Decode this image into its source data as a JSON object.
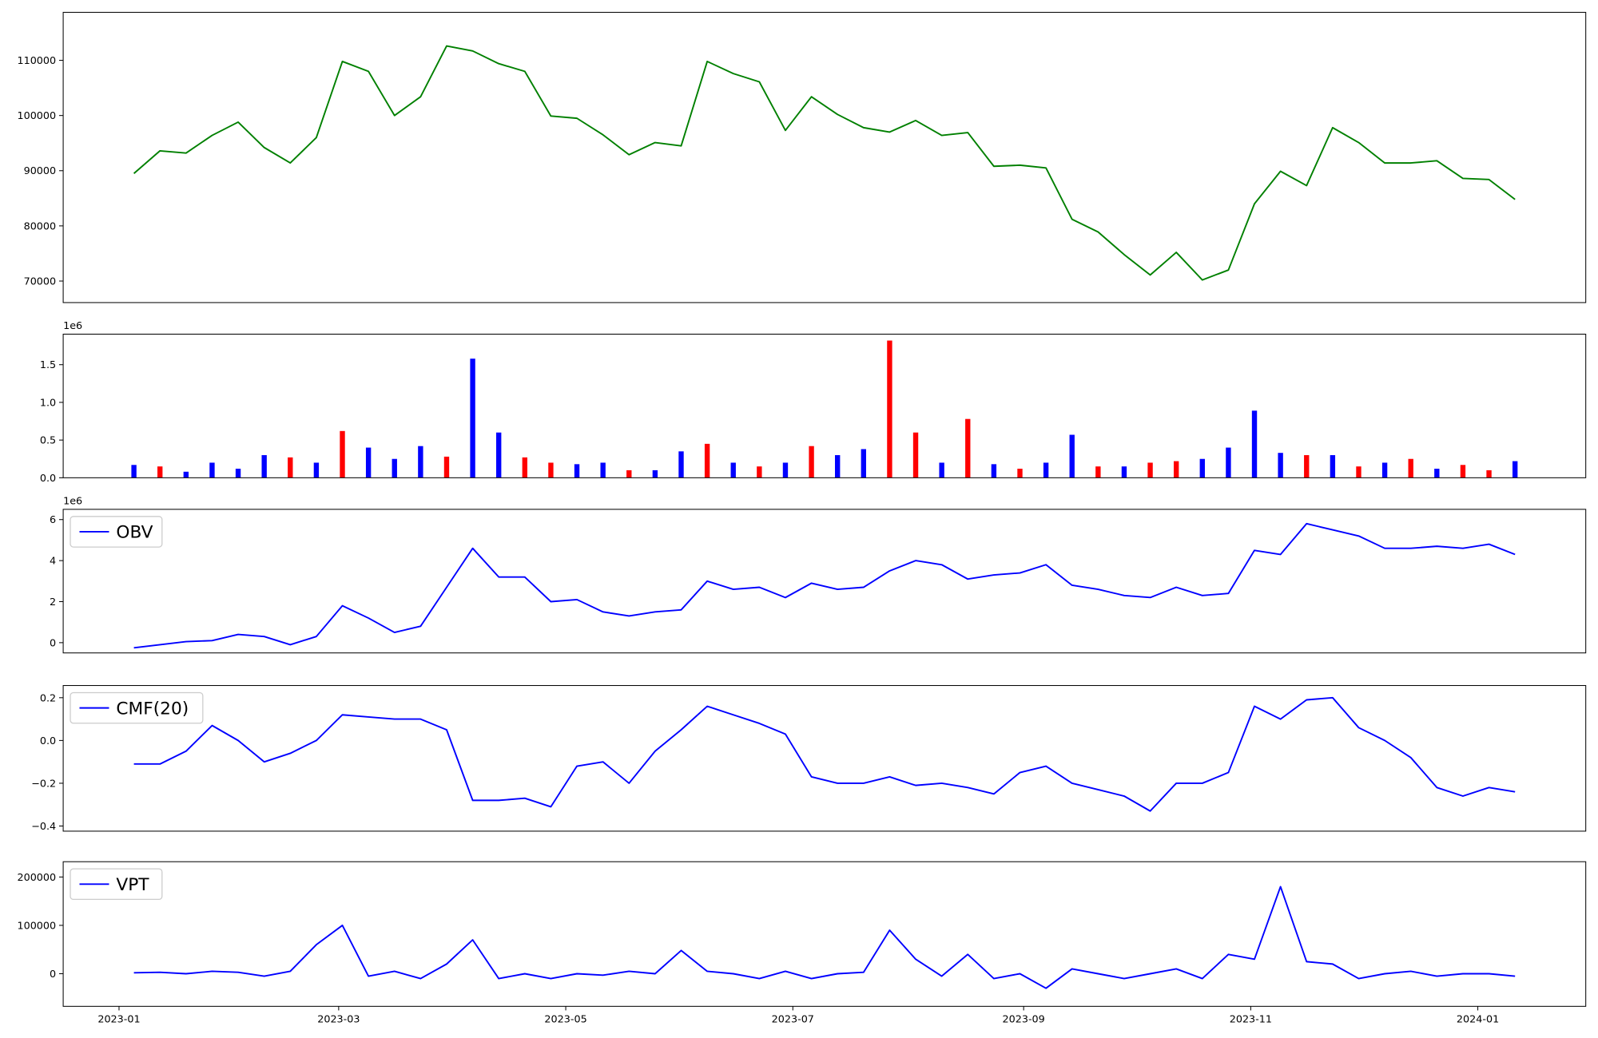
{
  "chart_data": [
    {
      "type": "line",
      "color": "#008000",
      "x": [
        "2023-01-05",
        "2023-01-12",
        "2023-01-19",
        "2023-01-26",
        "2023-02-02",
        "2023-02-09",
        "2023-02-16",
        "2023-02-23",
        "2023-03-02",
        "2023-03-09",
        "2023-03-16",
        "2023-03-23",
        "2023-03-30",
        "2023-04-06",
        "2023-04-13",
        "2023-04-20",
        "2023-04-27",
        "2023-05-04",
        "2023-05-11",
        "2023-05-18",
        "2023-05-25",
        "2023-06-01",
        "2023-06-08",
        "2023-06-15",
        "2023-06-22",
        "2023-06-29",
        "2023-07-06",
        "2023-07-13",
        "2023-07-20",
        "2023-07-27",
        "2023-08-03",
        "2023-08-10",
        "2023-08-17",
        "2023-08-24",
        "2023-08-31",
        "2023-09-07",
        "2023-09-14",
        "2023-09-21",
        "2023-09-28",
        "2023-10-05",
        "2023-10-12",
        "2023-10-19",
        "2023-10-26",
        "2023-11-02",
        "2023-11-09",
        "2023-11-16",
        "2023-11-23",
        "2023-11-30",
        "2023-12-07",
        "2023-12-14",
        "2023-12-21",
        "2023-12-28",
        "2024-01-04",
        "2024-01-11"
      ],
      "values": [
        89500,
        93600,
        93200,
        96400,
        98800,
        94200,
        91400,
        96000,
        109800,
        108000,
        100000,
        103400,
        112600,
        111700,
        109400,
        108000,
        99900,
        99500,
        96500,
        92900,
        95100,
        94500,
        109800,
        107600,
        106100,
        97300,
        103400,
        100200,
        97800,
        97000,
        99100,
        96400,
        96900,
        90800,
        91000,
        90500,
        81200,
        78900,
        74800,
        71100,
        75200,
        70200,
        72000,
        84000,
        89900,
        87300,
        97800,
        95100,
        91400,
        91400,
        91800,
        88600,
        88400,
        84800
      ],
      "xlim": [
        "2022-12-17",
        "2024-01-30"
      ],
      "ylim": [
        66100,
        118700
      ],
      "yticks": [
        70000,
        80000,
        90000,
        100000,
        110000
      ]
    },
    {
      "type": "bar",
      "y_offset_label": "1e6",
      "x": [
        "2023-01-05",
        "2023-01-12",
        "2023-01-19",
        "2023-01-26",
        "2023-02-02",
        "2023-02-09",
        "2023-02-16",
        "2023-02-23",
        "2023-03-02",
        "2023-03-09",
        "2023-03-16",
        "2023-03-23",
        "2023-03-30",
        "2023-04-06",
        "2023-04-13",
        "2023-04-20",
        "2023-04-27",
        "2023-05-04",
        "2023-05-11",
        "2023-05-18",
        "2023-05-25",
        "2023-06-01",
        "2023-06-08",
        "2023-06-15",
        "2023-06-22",
        "2023-06-29",
        "2023-07-06",
        "2023-07-13",
        "2023-07-20",
        "2023-07-27",
        "2023-08-03",
        "2023-08-10",
        "2023-08-17",
        "2023-08-24",
        "2023-08-31",
        "2023-09-07",
        "2023-09-14",
        "2023-09-21",
        "2023-09-28",
        "2023-10-05",
        "2023-10-12",
        "2023-10-19",
        "2023-10-26",
        "2023-11-02",
        "2023-11-09",
        "2023-11-16",
        "2023-11-23",
        "2023-11-30",
        "2023-12-07",
        "2023-12-14",
        "2023-12-21",
        "2023-12-28",
        "2024-01-04",
        "2024-01-11"
      ],
      "values": [
        0.17,
        0.15,
        0.08,
        0.2,
        0.12,
        0.3,
        0.27,
        0.2,
        0.62,
        0.4,
        0.25,
        0.42,
        0.28,
        1.58,
        0.6,
        0.27,
        0.2,
        0.18,
        0.2,
        0.1,
        0.1,
        0.35,
        0.45,
        0.2,
        0.15,
        0.2,
        0.42,
        0.3,
        0.38,
        1.82,
        0.6,
        0.2,
        0.78,
        0.18,
        0.12,
        0.2,
        0.57,
        0.15,
        0.15,
        0.2,
        0.22,
        0.25,
        0.4,
        0.89,
        0.33,
        0.3,
        0.3,
        0.15,
        0.2,
        0.25,
        0.12,
        0.17,
        0.1,
        0.22
      ],
      "bar_colors": [
        "#0000ff",
        "#ff0000",
        "#0000ff",
        "#0000ff",
        "#0000ff",
        "#0000ff",
        "#ff0000",
        "#0000ff",
        "#ff0000",
        "#0000ff",
        "#0000ff",
        "#0000ff",
        "#ff0000",
        "#0000ff",
        "#0000ff",
        "#ff0000",
        "#ff0000",
        "#0000ff",
        "#0000ff",
        "#ff0000",
        "#0000ff",
        "#0000ff",
        "#ff0000",
        "#0000ff",
        "#ff0000",
        "#0000ff",
        "#ff0000",
        "#0000ff",
        "#0000ff",
        "#ff0000",
        "#ff0000",
        "#0000ff",
        "#ff0000",
        "#0000ff",
        "#ff0000",
        "#0000ff",
        "#0000ff",
        "#ff0000",
        "#0000ff",
        "#ff0000",
        "#ff0000",
        "#0000ff",
        "#0000ff",
        "#0000ff",
        "#0000ff",
        "#ff0000",
        "#0000ff",
        "#ff0000",
        "#0000ff",
        "#ff0000",
        "#0000ff",
        "#ff0000",
        "#ff0000",
        "#0000ff"
      ],
      "xlim": [
        "2022-12-17",
        "2024-01-30"
      ],
      "ylim": [
        0,
        1.905
      ],
      "yticks": [
        {
          "value": 0,
          "label": "0.0"
        },
        0.5,
        {
          "value": 1,
          "label": "1.0"
        },
        1.5
      ]
    },
    {
      "type": "line",
      "y_offset_label": "1e6",
      "legend": "upper left",
      "x": [
        "2023-01-05",
        "2023-01-12",
        "2023-01-19",
        "2023-01-26",
        "2023-02-02",
        "2023-02-09",
        "2023-02-16",
        "2023-02-23",
        "2023-03-02",
        "2023-03-09",
        "2023-03-16",
        "2023-03-23",
        "2023-03-30",
        "2023-04-06",
        "2023-04-13",
        "2023-04-20",
        "2023-04-27",
        "2023-05-04",
        "2023-05-11",
        "2023-05-18",
        "2023-05-25",
        "2023-06-01",
        "2023-06-08",
        "2023-06-15",
        "2023-06-22",
        "2023-06-29",
        "2023-07-06",
        "2023-07-13",
        "2023-07-20",
        "2023-07-27",
        "2023-08-03",
        "2023-08-10",
        "2023-08-17",
        "2023-08-24",
        "2023-08-31",
        "2023-09-07",
        "2023-09-14",
        "2023-09-21",
        "2023-09-28",
        "2023-10-05",
        "2023-10-12",
        "2023-10-19",
        "2023-10-26",
        "2023-11-02",
        "2023-11-09",
        "2023-11-16",
        "2023-11-23",
        "2023-11-30",
        "2023-12-07",
        "2023-12-14",
        "2023-12-21",
        "2023-12-28",
        "2024-01-04",
        "2024-01-11"
      ],
      "series": [
        {
          "name": "OBV",
          "color": "#0000ff",
          "values": [
            -0.25,
            -0.1,
            0.05,
            0.1,
            0.4,
            0.3,
            -0.1,
            0.3,
            1.8,
            1.2,
            0.5,
            0.8,
            2.7,
            4.6,
            3.2,
            3.2,
            2.0,
            2.1,
            1.5,
            1.3,
            1.5,
            1.6,
            3.0,
            2.6,
            2.7,
            2.2,
            2.9,
            2.6,
            2.7,
            3.5,
            4.0,
            3.8,
            3.1,
            3.3,
            3.4,
            3.8,
            2.8,
            2.6,
            2.3,
            2.2,
            2.7,
            2.3,
            2.4,
            4.5,
            4.3,
            5.8,
            5.5,
            5.2,
            4.6,
            4.6,
            4.7,
            4.6,
            4.8,
            4.3
          ]
        }
      ],
      "xlim": [
        "2022-12-17",
        "2024-01-30"
      ],
      "ylim": [
        -0.5,
        6.5
      ],
      "yticks": [
        0,
        2,
        4,
        6
      ]
    },
    {
      "type": "line",
      "legend": "upper left",
      "x": [
        "2023-01-05",
        "2023-01-12",
        "2023-01-19",
        "2023-01-26",
        "2023-02-02",
        "2023-02-09",
        "2023-02-16",
        "2023-02-23",
        "2023-03-02",
        "2023-03-09",
        "2023-03-16",
        "2023-03-23",
        "2023-03-30",
        "2023-04-06",
        "2023-04-13",
        "2023-04-20",
        "2023-04-27",
        "2023-05-04",
        "2023-05-11",
        "2023-05-18",
        "2023-05-25",
        "2023-06-01",
        "2023-06-08",
        "2023-06-15",
        "2023-06-22",
        "2023-06-29",
        "2023-07-06",
        "2023-07-13",
        "2023-07-20",
        "2023-07-27",
        "2023-08-03",
        "2023-08-10",
        "2023-08-17",
        "2023-08-24",
        "2023-08-31",
        "2023-09-07",
        "2023-09-14",
        "2023-09-21",
        "2023-09-28",
        "2023-10-05",
        "2023-10-12",
        "2023-10-19",
        "2023-10-26",
        "2023-11-02",
        "2023-11-09",
        "2023-11-16",
        "2023-11-23",
        "2023-11-30",
        "2023-12-07",
        "2023-12-14",
        "2023-12-21",
        "2023-12-28",
        "2024-01-04",
        "2024-01-11"
      ],
      "series": [
        {
          "name": "CMF(20)",
          "color": "#0000ff",
          "values": [
            -0.11,
            -0.11,
            -0.05,
            0.07,
            0.0,
            -0.1,
            -0.06,
            0.0,
            0.12,
            0.11,
            0.1,
            0.1,
            0.05,
            -0.28,
            -0.28,
            -0.27,
            -0.31,
            -0.12,
            -0.1,
            -0.2,
            -0.05,
            0.05,
            0.16,
            0.12,
            0.08,
            0.03,
            -0.17,
            -0.2,
            -0.2,
            -0.17,
            -0.21,
            -0.2,
            -0.22,
            -0.25,
            -0.15,
            -0.12,
            -0.2,
            -0.23,
            -0.26,
            -0.33,
            -0.2,
            -0.2,
            -0.15,
            0.16,
            0.1,
            0.19,
            0.2,
            0.06,
            0.0,
            -0.08,
            -0.22,
            -0.26,
            -0.22,
            -0.24
          ]
        }
      ],
      "xlim": [
        "2022-12-17",
        "2024-01-30"
      ],
      "ylim": [
        -0.424,
        0.257
      ],
      "yticks": [
        {
          "value": -0.4,
          "label": "−0.4"
        },
        {
          "value": -0.2,
          "label": "−0.2"
        },
        {
          "value": 0,
          "label": "0.0"
        },
        0.2
      ]
    },
    {
      "type": "line",
      "legend": "upper left",
      "x": [
        "2023-01-05",
        "2023-01-12",
        "2023-01-19",
        "2023-01-26",
        "2023-02-02",
        "2023-02-09",
        "2023-02-16",
        "2023-02-23",
        "2023-03-02",
        "2023-03-09",
        "2023-03-16",
        "2023-03-23",
        "2023-03-30",
        "2023-04-06",
        "2023-04-13",
        "2023-04-20",
        "2023-04-27",
        "2023-05-04",
        "2023-05-11",
        "2023-05-18",
        "2023-05-25",
        "2023-06-01",
        "2023-06-08",
        "2023-06-15",
        "2023-06-22",
        "2023-06-29",
        "2023-07-06",
        "2023-07-13",
        "2023-07-20",
        "2023-07-27",
        "2023-08-03",
        "2023-08-10",
        "2023-08-17",
        "2023-08-24",
        "2023-08-31",
        "2023-09-07",
        "2023-09-14",
        "2023-09-21",
        "2023-09-28",
        "2023-10-05",
        "2023-10-12",
        "2023-10-19",
        "2023-10-26",
        "2023-11-02",
        "2023-11-09",
        "2023-11-16",
        "2023-11-23",
        "2023-11-30",
        "2023-12-07",
        "2023-12-14",
        "2023-12-21",
        "2023-12-28",
        "2024-01-04",
        "2024-01-11"
      ],
      "series": [
        {
          "name": "VPT",
          "color": "#0000ff",
          "values": [
            2000,
            3000,
            0,
            5000,
            3000,
            -5000,
            5000,
            60000,
            100000,
            -5000,
            5000,
            -10000,
            20000,
            70000,
            -10000,
            0,
            -10000,
            0,
            -3000,
            5000,
            0,
            48000,
            5000,
            0,
            -10000,
            5000,
            -10000,
            0,
            3000,
            90000,
            30000,
            -5000,
            40000,
            -10000,
            0,
            -30000,
            10000,
            0,
            -10000,
            0,
            10000,
            -10000,
            40000,
            30000,
            180000,
            25000,
            20000,
            -10000,
            0,
            5000,
            -5000,
            0,
            0,
            -5000
          ]
        }
      ],
      "xlim": [
        "2022-12-17",
        "2024-01-30"
      ],
      "xticks": [
        "2023-01",
        "2023-03",
        "2023-05",
        "2023-07",
        "2023-09",
        "2023-11",
        "2024-01"
      ],
      "ylim": [
        -67400,
        231600
      ],
      "yticks": [
        0,
        100000,
        200000
      ]
    }
  ]
}
